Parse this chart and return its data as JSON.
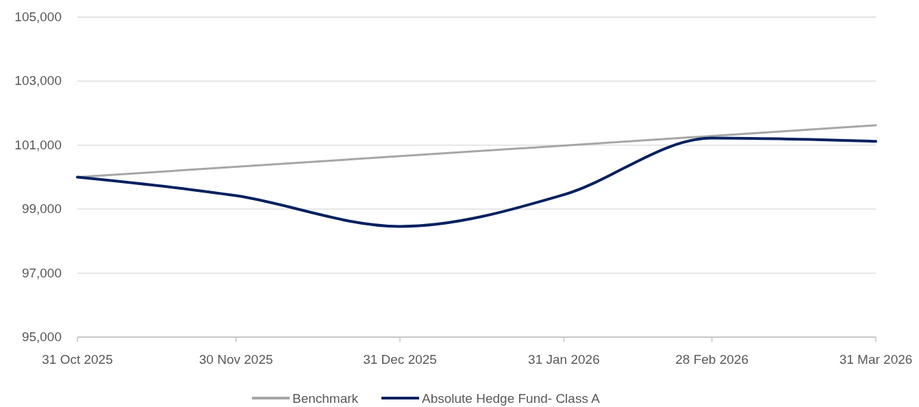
{
  "chart_data": {
    "type": "line",
    "x": [
      "2025-10-31",
      "2025-11-30",
      "2025-12-31",
      "2026-01-31",
      "2026-02-28",
      "2026-03-31"
    ],
    "series": [
      {
        "name": "Benchmark",
        "color": "#a6a6a6",
        "x": [
          "2025-10-31",
          "2026-03-31"
        ],
        "values": [
          100000,
          101620
        ]
      },
      {
        "name": "Absolute Hedge Fund- Class A",
        "color": "#002060",
        "values": [
          100000,
          99420,
          98460,
          99450,
          101220,
          101120
        ]
      }
    ],
    "xlim": [
      "2025-10-31",
      "2026-03-31"
    ],
    "xticks": [
      {
        "value": "2025-10-31",
        "label": "31 Oct 2025"
      },
      {
        "value": "2025-11-30",
        "label": "30 Nov 2025"
      },
      {
        "value": "2025-12-31",
        "label": "31 Dec 2025"
      },
      {
        "value": "2026-01-31",
        "label": "31 Jan 2026"
      },
      {
        "value": "2026-02-28",
        "label": "28 Feb 2026"
      },
      {
        "value": "2026-03-31",
        "label": "31 Mar 2026"
      }
    ],
    "ylim": [
      95000,
      105000
    ],
    "yticks": [
      {
        "value": 95000,
        "label": "95,000"
      },
      {
        "value": 97000,
        "label": "97,000"
      },
      {
        "value": 99000,
        "label": "99,000"
      },
      {
        "value": 101000,
        "label": "101,000"
      },
      {
        "value": 103000,
        "label": "103,000"
      },
      {
        "value": 105000,
        "label": "105,000"
      }
    ],
    "grid": "y",
    "legend": "bottom",
    "line_style": "solid",
    "marker": "none"
  }
}
